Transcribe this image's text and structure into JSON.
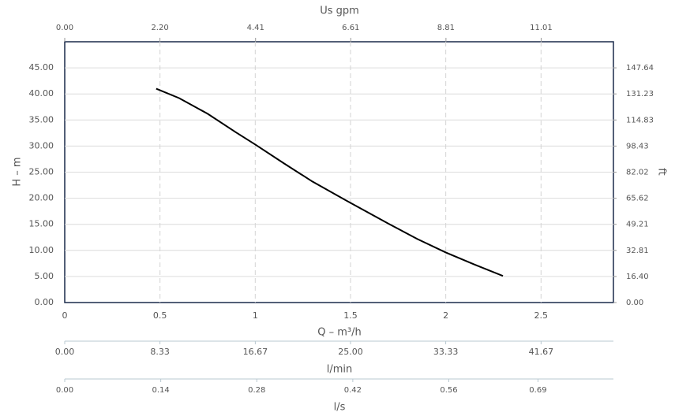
{
  "chart_data": {
    "type": "line",
    "x_label": "Q – m³/h",
    "y_label": "H – m",
    "y2_label": "ft",
    "x": [
      0.48,
      0.6,
      0.75,
      0.9,
      1.0,
      1.15,
      1.3,
      1.5,
      1.7,
      1.85,
      2.0,
      2.15,
      2.3
    ],
    "series": [
      {
        "color": "#000000",
        "values": [
          41,
          39.2,
          36.2,
          32.6,
          30.3,
          26.7,
          23.2,
          19.1,
          15.1,
          12.2,
          9.6,
          7.3,
          5.1
        ]
      }
    ],
    "xlim": [
      0,
      2.88
    ],
    "ylim": [
      0,
      50
    ],
    "xticks": [
      0,
      0.5,
      1,
      1.5,
      2,
      2.5
    ],
    "yticks": [
      {
        "value": 0,
        "label": "0.00"
      },
      {
        "value": 5,
        "label": "5.00"
      },
      {
        "value": 10,
        "label": "10.00"
      },
      {
        "value": 15,
        "label": "15.00"
      },
      {
        "value": 20,
        "label": "20.00"
      },
      {
        "value": 25,
        "label": "25.00"
      },
      {
        "value": 30,
        "label": "30.00"
      },
      {
        "value": 35,
        "label": "35.00"
      },
      {
        "value": 40,
        "label": "40.00"
      },
      {
        "value": 45,
        "label": "45.00"
      }
    ],
    "y2lim": [
      0,
      164.04
    ],
    "y2ticks": [
      {
        "value": 0,
        "label": "0.00"
      },
      {
        "value": 16.4,
        "label": "16.40"
      },
      32.81,
      49.21,
      65.62,
      82.02,
      98.43,
      114.83,
      131.23,
      147.64
    ],
    "grid": true,
    "top_axis": {
      "label": "Us gpm",
      "lim": [
        0,
        12.68
      ],
      "ticks": [
        {
          "value": 0,
          "label": "0.00"
        },
        {
          "value": 2.2,
          "label": "2.20"
        },
        4.41,
        6.61,
        8.81,
        11.01
      ]
    },
    "bottom_axes": [
      {
        "label": "l/min",
        "lim": [
          0,
          48
        ],
        "ticks": [
          {
            "value": 0,
            "label": "0.00"
          },
          8.33,
          16.67,
          {
            "value": 25,
            "label": "25.00"
          },
          33.33,
          41.67
        ]
      },
      {
        "label": "l/s",
        "lim": [
          0,
          0.8
        ],
        "ticks": [
          {
            "value": 0,
            "label": "0.00"
          },
          0.14,
          0.28,
          0.42,
          0.56,
          0.69
        ]
      }
    ]
  }
}
